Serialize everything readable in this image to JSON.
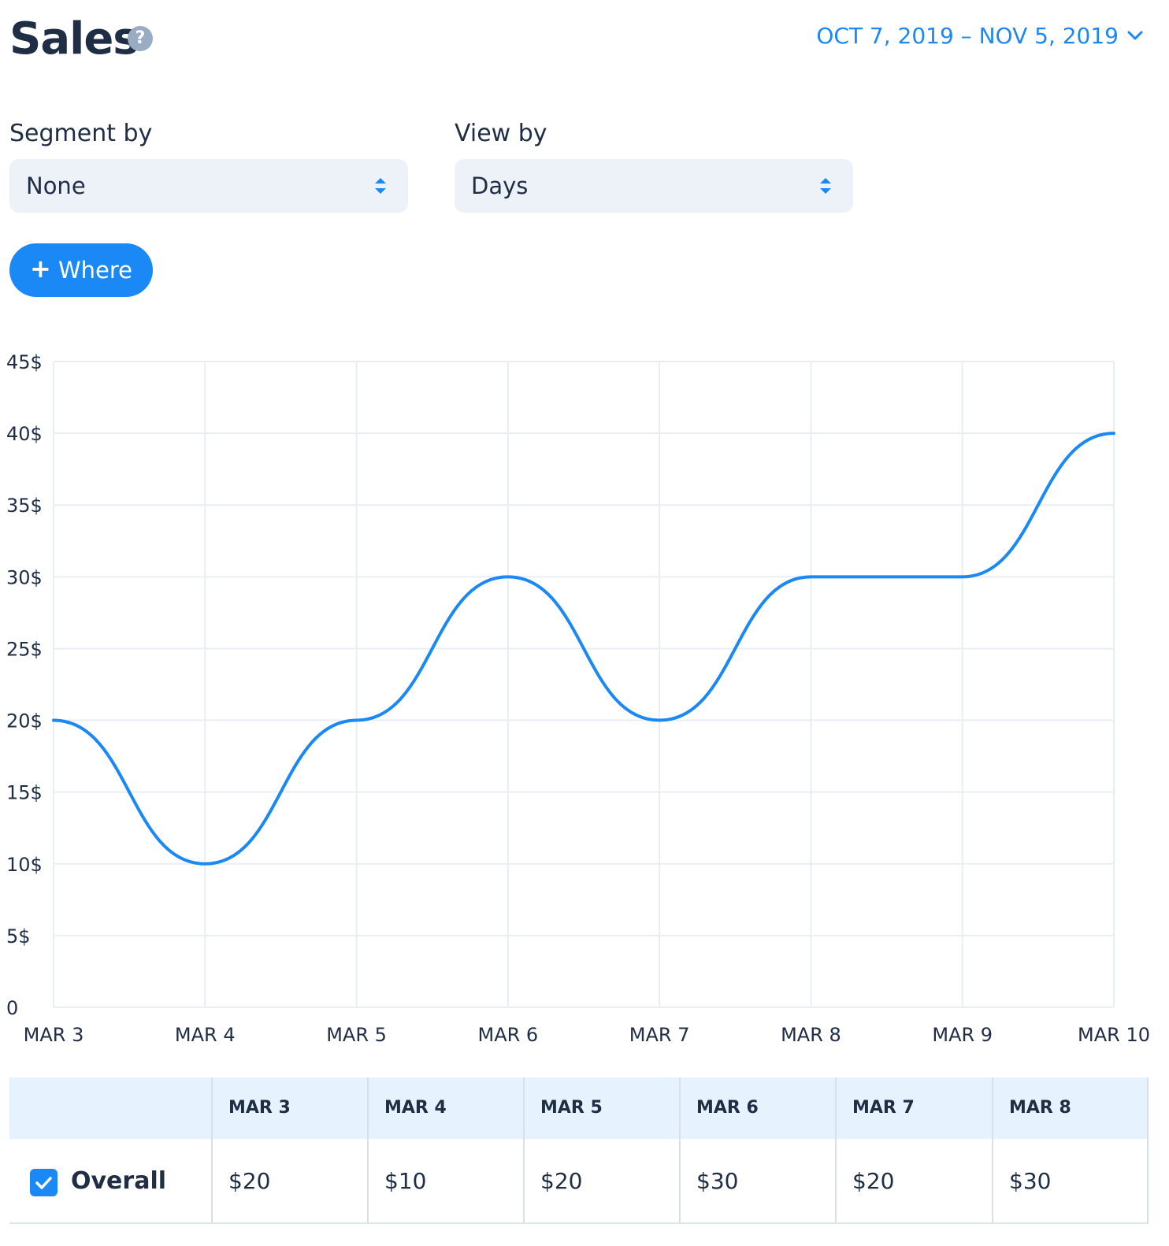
{
  "header": {
    "title": "Sales",
    "help_icon": "?",
    "date_range": "OCT 7, 2019 – NOV 5, 2019"
  },
  "controls": {
    "segment_label": "Segment by",
    "segment_value": "None",
    "view_label": "View by",
    "view_value": "Days",
    "where_plus": "+",
    "where_label": "Where"
  },
  "colors": {
    "accent": "#1a88f5",
    "title": "#1f2d45",
    "grid": "#e9eef4"
  },
  "chart_data": {
    "type": "line",
    "title": "",
    "xlabel": "",
    "ylabel": "",
    "categories": [
      "MAR 3",
      "MAR 4",
      "MAR 5",
      "MAR 6",
      "MAR 7",
      "MAR 8",
      "MAR 9",
      "MAR 10"
    ],
    "values": [
      20,
      10,
      20,
      30,
      20,
      30,
      30,
      40
    ],
    "ylim": [
      0,
      45
    ],
    "yticks": [
      0,
      5,
      10,
      15,
      20,
      25,
      30,
      35,
      40,
      45
    ],
    "ytick_labels": [
      "0",
      "5$",
      "10$",
      "15$",
      "20$",
      "25$",
      "30$",
      "35$",
      "40$",
      "45$"
    ],
    "grid": true,
    "smooth": true,
    "color": "#1a88f5"
  },
  "table": {
    "columns": [
      "MAR 3",
      "MAR 4",
      "MAR 5",
      "MAR 6",
      "MAR 7",
      "MAR 8"
    ],
    "rows": [
      {
        "label": "Overall",
        "checked": true,
        "values": [
          "$20",
          "$10",
          "$20",
          "$30",
          "$20",
          "$30"
        ]
      }
    ]
  }
}
